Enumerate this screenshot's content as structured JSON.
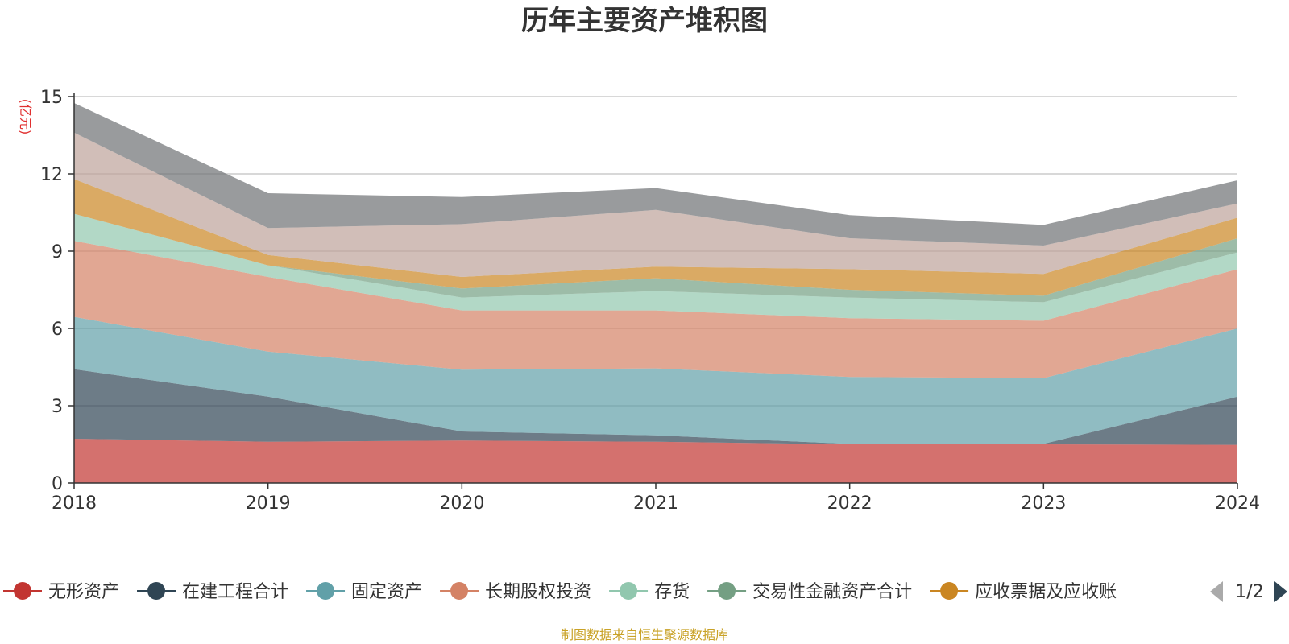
{
  "chart_data": {
    "type": "area",
    "stacked": true,
    "title": "历年主要资产堆积图",
    "ylabel": "(亿元)",
    "xlabel": "",
    "ylim": [
      0,
      15
    ],
    "yticks": [
      0,
      3,
      6,
      9,
      12,
      15
    ],
    "grid": true,
    "categories": [
      "2018",
      "2019",
      "2020",
      "2021",
      "2022",
      "2023",
      "2024"
    ],
    "series": [
      {
        "name": "无形资产",
        "color": "#c23531",
        "values": [
          1.72,
          1.6,
          1.65,
          1.6,
          1.5,
          1.5,
          1.48
        ]
      },
      {
        "name": "在建工程合计",
        "color": "#2f4554",
        "values": [
          2.7,
          1.75,
          0.35,
          0.25,
          0.02,
          0.02,
          1.87
        ]
      },
      {
        "name": "固定资产",
        "color": "#61a0a8",
        "values": [
          2.03,
          1.75,
          2.4,
          2.6,
          2.6,
          2.55,
          2.65
        ]
      },
      {
        "name": "长期股权投资",
        "color": "#d48265",
        "values": [
          2.95,
          2.9,
          2.3,
          2.25,
          2.28,
          2.23,
          2.3
        ]
      },
      {
        "name": "存货",
        "color": "#91c7ae",
        "values": [
          1.05,
          0.45,
          0.5,
          0.75,
          0.8,
          0.72,
          0.65
        ]
      },
      {
        "name": "交易性金融资产合计",
        "color": "#749f83",
        "values": [
          0.0,
          0.0,
          0.35,
          0.5,
          0.3,
          0.25,
          0.55
        ]
      },
      {
        "name": "应收票据及应收账",
        "color": "#ca8622",
        "values": [
          1.35,
          0.4,
          0.45,
          0.45,
          0.8,
          0.85,
          0.8
        ]
      },
      {
        "name": "",
        "color": "#bda29a",
        "values": [
          1.8,
          1.05,
          2.05,
          2.2,
          1.2,
          1.1,
          0.55
        ]
      },
      {
        "name": "",
        "color": "#6e7074",
        "values": [
          1.15,
          1.35,
          1.05,
          0.85,
          0.9,
          0.8,
          0.9
        ]
      }
    ],
    "legend": {
      "position": "bottom",
      "page": "1/2"
    },
    "source_note": "制图数据来自恒生聚源数据库"
  }
}
